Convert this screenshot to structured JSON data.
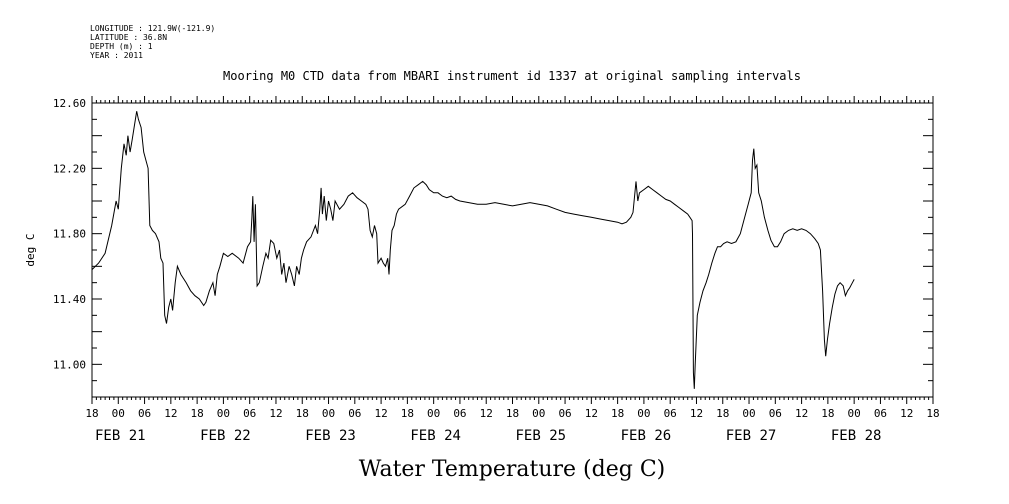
{
  "header": {
    "longitude": "LONGITUDE : 121.9W(-121.9)",
    "latitude": "LATITUDE : 36.8N",
    "depth": "DEPTH (m) : 1",
    "year": "YEAR : 2011"
  },
  "chart_data": {
    "type": "line",
    "title": "Mooring M0 CTD data from MBARI instrument id 1337 at original sampling intervals",
    "xlabel": "Water Temperature (deg C)",
    "ylabel": "deg C",
    "xlim_hours": [
      -6,
      186
    ],
    "ylim": [
      10.8,
      12.6
    ],
    "y_ticks": [
      "11.00",
      "11.40",
      "11.80",
      "12.20",
      "12.60"
    ],
    "x_hour_ticks": [
      "18",
      "00",
      "06",
      "12",
      "18",
      "00",
      "06",
      "12",
      "18",
      "00",
      "06",
      "12",
      "18",
      "00",
      "06",
      "12",
      "18",
      "00",
      "06",
      "12",
      "18",
      "00",
      "06",
      "12",
      "18",
      "00",
      "06",
      "12",
      "18",
      "00",
      "06",
      "12",
      "18"
    ],
    "day_labels": [
      "FEB 21",
      "FEB 22",
      "FEB 23",
      "FEB 24",
      "FEB 25",
      "FEB 26",
      "FEB 27",
      "FEB 28"
    ],
    "grid": false,
    "series": [
      {
        "color": "#000000",
        "points": [
          [
            -6,
            11.58
          ],
          [
            -4.5,
            11.62
          ],
          [
            -3,
            11.68
          ],
          [
            -1.5,
            11.85
          ],
          [
            -0.5,
            12.0
          ],
          [
            0,
            11.95
          ],
          [
            0.7,
            12.2
          ],
          [
            1.3,
            12.35
          ],
          [
            1.8,
            12.28
          ],
          [
            2.2,
            12.4
          ],
          [
            2.7,
            12.3
          ],
          [
            3.2,
            12.38
          ],
          [
            3.6,
            12.45
          ],
          [
            4.2,
            12.55
          ],
          [
            4.6,
            12.5
          ],
          [
            5.2,
            12.45
          ],
          [
            5.8,
            12.3
          ],
          [
            6.3,
            12.25
          ],
          [
            6.8,
            12.2
          ],
          [
            7.2,
            11.85
          ],
          [
            7.8,
            11.82
          ],
          [
            8.5,
            11.8
          ],
          [
            9.3,
            11.75
          ],
          [
            9.7,
            11.65
          ],
          [
            10.2,
            11.62
          ],
          [
            10.6,
            11.3
          ],
          [
            11.0,
            11.25
          ],
          [
            11.5,
            11.35
          ],
          [
            12.0,
            11.4
          ],
          [
            12.4,
            11.33
          ],
          [
            13.0,
            11.5
          ],
          [
            13.5,
            11.6
          ],
          [
            14.3,
            11.55
          ],
          [
            15.5,
            11.5
          ],
          [
            16.5,
            11.45
          ],
          [
            17.5,
            11.42
          ],
          [
            18.5,
            11.4
          ],
          [
            19.5,
            11.36
          ],
          [
            20.0,
            11.38
          ],
          [
            20.8,
            11.45
          ],
          [
            21.6,
            11.5
          ],
          [
            22.1,
            11.42
          ],
          [
            22.6,
            11.55
          ],
          [
            23.2,
            11.6
          ],
          [
            24.0,
            11.68
          ],
          [
            25.0,
            11.66
          ],
          [
            26.0,
            11.68
          ],
          [
            27.5,
            11.65
          ],
          [
            28.5,
            11.62
          ],
          [
            29.5,
            11.72
          ],
          [
            30.2,
            11.75
          ],
          [
            30.5,
            11.9
          ],
          [
            30.7,
            12.03
          ],
          [
            31.0,
            11.75
          ],
          [
            31.3,
            11.98
          ],
          [
            31.7,
            11.48
          ],
          [
            32.2,
            11.5
          ],
          [
            33.0,
            11.6
          ],
          [
            33.7,
            11.68
          ],
          [
            34.2,
            11.65
          ],
          [
            34.8,
            11.76
          ],
          [
            35.5,
            11.74
          ],
          [
            36.2,
            11.65
          ],
          [
            36.8,
            11.7
          ],
          [
            37.3,
            11.55
          ],
          [
            37.8,
            11.62
          ],
          [
            38.3,
            11.5
          ],
          [
            39.0,
            11.6
          ],
          [
            39.6,
            11.55
          ],
          [
            40.2,
            11.48
          ],
          [
            40.7,
            11.6
          ],
          [
            41.3,
            11.55
          ],
          [
            41.8,
            11.65
          ],
          [
            42.3,
            11.7
          ],
          [
            43.0,
            11.75
          ],
          [
            44.0,
            11.78
          ],
          [
            45.0,
            11.85
          ],
          [
            45.5,
            11.8
          ],
          [
            46.0,
            11.95
          ],
          [
            46.3,
            12.08
          ],
          [
            46.6,
            11.92
          ],
          [
            47.0,
            12.03
          ],
          [
            47.5,
            11.88
          ],
          [
            48.0,
            12.0
          ],
          [
            48.5,
            11.95
          ],
          [
            49.0,
            11.88
          ],
          [
            49.5,
            12.0
          ],
          [
            50.5,
            11.95
          ],
          [
            51.5,
            11.98
          ],
          [
            52.5,
            12.03
          ],
          [
            53.5,
            12.05
          ],
          [
            54.5,
            12.02
          ],
          [
            55.5,
            12.0
          ],
          [
            56.5,
            11.98
          ],
          [
            57.0,
            11.95
          ],
          [
            57.5,
            11.82
          ],
          [
            58.0,
            11.78
          ],
          [
            58.5,
            11.85
          ],
          [
            59.0,
            11.8
          ],
          [
            59.3,
            11.62
          ],
          [
            60.0,
            11.65
          ],
          [
            60.5,
            11.62
          ],
          [
            61.0,
            11.6
          ],
          [
            61.5,
            11.65
          ],
          [
            61.8,
            11.55
          ],
          [
            62.1,
            11.7
          ],
          [
            62.5,
            11.82
          ],
          [
            63.0,
            11.85
          ],
          [
            63.5,
            11.92
          ],
          [
            64.0,
            11.95
          ],
          [
            65.5,
            11.98
          ],
          [
            66.5,
            12.03
          ],
          [
            67.5,
            12.08
          ],
          [
            68.5,
            12.1
          ],
          [
            69.5,
            12.12
          ],
          [
            70.3,
            12.1
          ],
          [
            71.0,
            12.07
          ],
          [
            72.0,
            12.05
          ],
          [
            73.0,
            12.05
          ],
          [
            74.0,
            12.03
          ],
          [
            75.0,
            12.02
          ],
          [
            76.0,
            12.03
          ],
          [
            77.0,
            12.01
          ],
          [
            78.0,
            12.0
          ],
          [
            80.0,
            11.99
          ],
          [
            82.0,
            11.98
          ],
          [
            84.0,
            11.98
          ],
          [
            86.0,
            11.99
          ],
          [
            88.0,
            11.98
          ],
          [
            90.0,
            11.97
          ],
          [
            92.0,
            11.98
          ],
          [
            94.0,
            11.99
          ],
          [
            96.0,
            11.98
          ],
          [
            98.0,
            11.97
          ],
          [
            100.0,
            11.95
          ],
          [
            102.0,
            11.93
          ],
          [
            104.0,
            11.92
          ],
          [
            106.0,
            11.91
          ],
          [
            108.0,
            11.9
          ],
          [
            110.0,
            11.89
          ],
          [
            112.0,
            11.88
          ],
          [
            114.0,
            11.87
          ],
          [
            115.0,
            11.86
          ],
          [
            116.0,
            11.87
          ],
          [
            117.0,
            11.9
          ],
          [
            117.5,
            11.93
          ],
          [
            118.2,
            12.12
          ],
          [
            118.6,
            12.0
          ],
          [
            119.0,
            12.05
          ],
          [
            120.0,
            12.07
          ],
          [
            121.0,
            12.09
          ],
          [
            122.0,
            12.07
          ],
          [
            123.0,
            12.05
          ],
          [
            124.0,
            12.03
          ],
          [
            125.0,
            12.01
          ],
          [
            126.0,
            12.0
          ],
          [
            127.0,
            11.98
          ],
          [
            128.0,
            11.96
          ],
          [
            129.0,
            11.94
          ],
          [
            130.0,
            11.92
          ],
          [
            130.5,
            11.9
          ],
          [
            131.0,
            11.88
          ],
          [
            131.1,
            11.8
          ],
          [
            131.3,
            10.95
          ],
          [
            131.5,
            10.85
          ],
          [
            131.7,
            11.0
          ],
          [
            132.2,
            11.3
          ],
          [
            132.8,
            11.38
          ],
          [
            133.5,
            11.45
          ],
          [
            134.2,
            11.5
          ],
          [
            134.8,
            11.55
          ],
          [
            135.5,
            11.62
          ],
          [
            136.2,
            11.68
          ],
          [
            136.8,
            11.72
          ],
          [
            137.5,
            11.72
          ],
          [
            138.2,
            11.74
          ],
          [
            139.0,
            11.75
          ],
          [
            140.0,
            11.74
          ],
          [
            141.0,
            11.75
          ],
          [
            142.0,
            11.8
          ],
          [
            143.0,
            11.9
          ],
          [
            143.8,
            11.98
          ],
          [
            144.5,
            12.05
          ],
          [
            144.8,
            12.25
          ],
          [
            145.1,
            12.32
          ],
          [
            145.4,
            12.2
          ],
          [
            145.8,
            12.22
          ],
          [
            146.2,
            12.05
          ],
          [
            146.8,
            12.0
          ],
          [
            147.5,
            11.9
          ],
          [
            148.3,
            11.82
          ],
          [
            149.0,
            11.76
          ],
          [
            149.8,
            11.72
          ],
          [
            150.5,
            11.72
          ],
          [
            151.2,
            11.75
          ],
          [
            152.0,
            11.8
          ],
          [
            153.0,
            11.82
          ],
          [
            154.0,
            11.83
          ],
          [
            155.0,
            11.82
          ],
          [
            156.0,
            11.83
          ],
          [
            157.0,
            11.82
          ],
          [
            158.0,
            11.8
          ],
          [
            159.0,
            11.77
          ],
          [
            159.8,
            11.74
          ],
          [
            160.3,
            11.7
          ],
          [
            160.8,
            11.45
          ],
          [
            161.2,
            11.15
          ],
          [
            161.5,
            11.05
          ],
          [
            161.9,
            11.15
          ],
          [
            162.4,
            11.25
          ],
          [
            163.0,
            11.35
          ],
          [
            163.6,
            11.43
          ],
          [
            164.2,
            11.48
          ],
          [
            164.8,
            11.5
          ],
          [
            165.5,
            11.48
          ],
          [
            166.0,
            11.42
          ],
          [
            166.5,
            11.45
          ],
          [
            167.0,
            11.47
          ],
          [
            167.6,
            11.5
          ],
          [
            168.0,
            11.52
          ]
        ]
      }
    ]
  }
}
